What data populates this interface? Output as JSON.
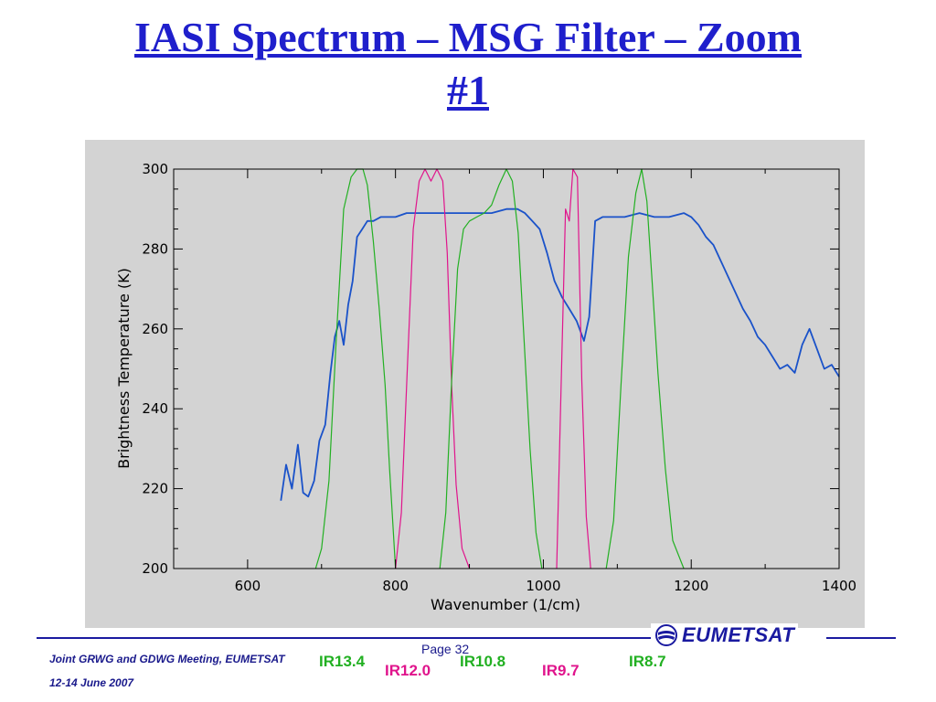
{
  "title": {
    "line1": "IASI Spectrum – MSG Filter – Zoom",
    "line2": "#1"
  },
  "colors": {
    "title": "#1f1fcc",
    "spectrum": "#1a52c9",
    "filter_green": "#22b022",
    "filter_magenta": "#e0148c",
    "plot_background": "#d3d3d3",
    "footer": "#1a1a8c"
  },
  "chart_data": {
    "type": "line",
    "title": "",
    "xlabel": "Wavenumber (1/cm)",
    "ylabel": "Brightness Temperature (K)",
    "xlim": [
      500,
      1400
    ],
    "ylim": [
      200,
      300
    ],
    "xticks": [
      600,
      800,
      1000,
      1200,
      1400
    ],
    "yticks": [
      200,
      220,
      240,
      260,
      280,
      300
    ],
    "grid": false,
    "legend": "none",
    "series": [
      {
        "color": "#1a52c9",
        "x": [
          645,
          652,
          660,
          668,
          675,
          682,
          690,
          697,
          705,
          712,
          718,
          724,
          730,
          736,
          742,
          748,
          755,
          762,
          770,
          780,
          790,
          800,
          815,
          830,
          850,
          870,
          890,
          910,
          930,
          950,
          965,
          975,
          985,
          995,
          1005,
          1015,
          1025,
          1035,
          1045,
          1055,
          1062,
          1070,
          1080,
          1095,
          1110,
          1130,
          1150,
          1170,
          1190,
          1200,
          1210,
          1220,
          1230,
          1240,
          1250,
          1260,
          1270,
          1280,
          1290,
          1300,
          1310,
          1320,
          1330,
          1340,
          1350,
          1360,
          1370,
          1380,
          1390,
          1400
        ],
        "y": [
          217,
          226,
          220,
          231,
          219,
          218,
          222,
          232,
          236,
          249,
          258,
          262,
          256,
          266,
          272,
          283,
          285,
          287,
          287,
          288,
          288,
          288,
          289,
          289,
          289,
          289,
          289,
          289,
          289,
          290,
          290,
          289,
          287,
          285,
          279,
          272,
          268,
          265,
          262,
          257,
          263,
          287,
          288,
          288,
          288,
          289,
          288,
          288,
          289,
          288,
          286,
          283,
          281,
          277,
          273,
          269,
          265,
          262,
          258,
          256,
          253,
          250,
          251,
          249,
          256,
          260,
          255,
          250,
          251,
          248
        ]
      },
      {
        "color": "#22b022",
        "x": [
          692,
          700,
          710,
          720,
          730,
          740,
          748,
          756,
          762,
          770,
          778,
          786,
          792,
          800
        ],
        "y": [
          200,
          205,
          222,
          258,
          290,
          298,
          300,
          300,
          296,
          282,
          265,
          246,
          225,
          200
        ]
      },
      {
        "color": "#e0148c",
        "x": [
          800,
          808,
          816,
          824,
          832,
          840,
          848,
          856,
          864,
          870,
          876,
          882,
          890,
          900
        ],
        "y": [
          200,
          214,
          250,
          285,
          297,
          300,
          297,
          300,
          297,
          279,
          246,
          221,
          205,
          200
        ]
      },
      {
        "color": "#22b022",
        "x": [
          860,
          868,
          876,
          884,
          892,
          900,
          910,
          920,
          930,
          940,
          950,
          958,
          966,
          974,
          982,
          990,
          998
        ],
        "y": [
          200,
          214,
          247,
          275,
          285,
          287,
          288,
          289,
          291,
          296,
          300,
          297,
          284,
          257,
          230,
          209,
          200
        ]
      },
      {
        "color": "#e0148c",
        "x": [
          1018,
          1024,
          1030,
          1035,
          1040,
          1046,
          1052,
          1058,
          1064
        ],
        "y": [
          200,
          246,
          290,
          287,
          300,
          298,
          247,
          213,
          200
        ]
      },
      {
        "color": "#22b022",
        "x": [
          1085,
          1095,
          1105,
          1115,
          1125,
          1133,
          1140,
          1147,
          1155,
          1165,
          1175,
          1190
        ],
        "y": [
          200,
          212,
          246,
          278,
          294,
          300,
          292,
          272,
          249,
          225,
          207,
          200
        ]
      }
    ]
  },
  "footer": {
    "meeting": "Joint GRWG and GDWG Meeting, EUMETSAT",
    "dates": "12-14 June 2007",
    "page": "Page 32",
    "logo_text": "EUMETSAT"
  },
  "band_labels": [
    {
      "text": "IR13.4",
      "color": "#22b022"
    },
    {
      "text": "IR12.0",
      "color": "#e0148c"
    },
    {
      "text": "IR10.8",
      "color": "#22b022"
    },
    {
      "text": "IR9.7",
      "color": "#e0148c"
    },
    {
      "text": "IR8.7",
      "color": "#22b022"
    }
  ]
}
